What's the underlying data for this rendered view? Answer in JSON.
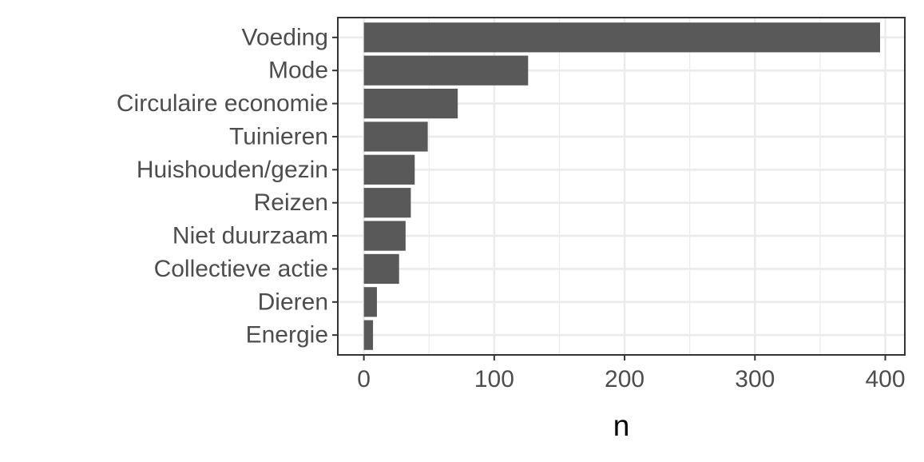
{
  "chart_data": {
    "type": "bar",
    "orientation": "horizontal",
    "categories": [
      "Voeding",
      "Mode",
      "Circulaire economie",
      "Tuinieren",
      "Huishouden/gezin",
      "Reizen",
      "Niet duurzaam",
      "Collectieve actie",
      "Dieren",
      "Energie"
    ],
    "values": [
      396,
      126,
      72,
      49,
      39,
      36,
      32,
      27,
      10,
      7
    ],
    "title": "",
    "xlabel": "n",
    "ylabel": "",
    "xlim": [
      -20,
      415
    ],
    "x_ticks": [
      "0",
      "100",
      "200",
      "300",
      "400"
    ],
    "grid": true,
    "colors": {
      "bar": "#595959",
      "grid": "#ebebeb",
      "panel_border": "#333333",
      "text": "#4d4d4d"
    }
  }
}
